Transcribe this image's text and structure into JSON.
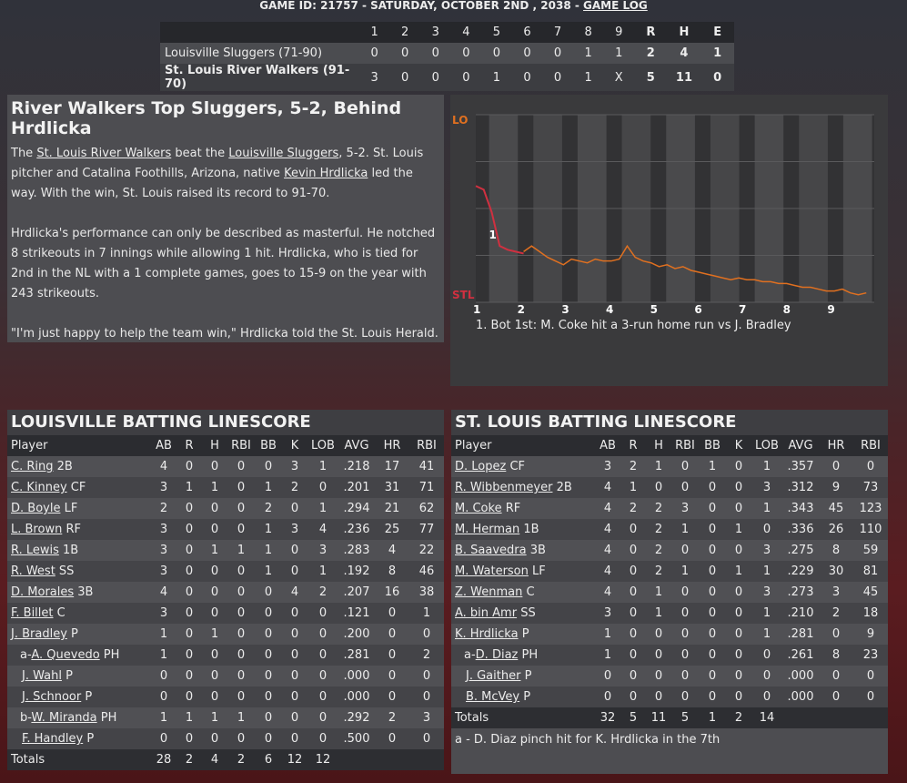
{
  "header": {
    "game_id_text": "GAME ID: 21757 - SATURDAY, OCTOBER 2ND , 2038 - ",
    "game_log_link": "GAME LOG"
  },
  "linescore": {
    "innings": [
      "1",
      "2",
      "3",
      "4",
      "5",
      "6",
      "7",
      "8",
      "9"
    ],
    "totals_headers": [
      "R",
      "H",
      "E"
    ],
    "teams": [
      {
        "name": "Louisville Sluggers (71-90)",
        "innings": [
          "0",
          "0",
          "0",
          "0",
          "0",
          "0",
          "0",
          "1",
          "1"
        ],
        "r": "2",
        "h": "4",
        "e": "1"
      },
      {
        "name": "St. Louis River Walkers (91-70)",
        "innings": [
          "3",
          "0",
          "0",
          "0",
          "1",
          "0",
          "0",
          "1",
          "X"
        ],
        "r": "5",
        "h": "11",
        "e": "0"
      }
    ]
  },
  "article": {
    "headline": "River Walkers Top Sluggers, 5-2, Behind Hrdlicka",
    "p1_a": "The ",
    "p1_link1": "St. Louis River Walkers",
    "p1_b": " beat the ",
    "p1_link2": "Louisville Sluggers",
    "p1_c": ", 5-2. St. Louis pitcher and Catalina Foothills, Arizona, native ",
    "p1_link3": "Kevin Hrdlicka",
    "p1_d": " led the way. With the win, St. Louis raised its record to 91-70.",
    "p2": "Hrdlicka's performance can only be described as masterful. He notched 8 strikeouts in 7 innings while allowing 1 hit. Hrdlicka, who is tied for 2nd in the NL with a 1 complete games, goes to 15-9 on the year with 243 strikeouts.",
    "p3": "\"I'm just happy to help the team win,\" Hrdlicka told the St. Louis Herald."
  },
  "chart_data": {
    "type": "line",
    "top_label": "LO",
    "bottom_label": "STL",
    "colors": {
      "lou": "#e07020",
      "stl": "#d03040"
    },
    "x_ticks": [
      "1",
      "2",
      "3",
      "4",
      "5",
      "6",
      "7",
      "8",
      "9"
    ],
    "ylim": [
      0,
      1
    ],
    "marker_label": "1",
    "series": [
      {
        "values": [
          0.62,
          0.6,
          0.48,
          0.3,
          0.28,
          0.27,
          0.26
        ]
      },
      {
        "values": [
          0.27,
          0.3,
          0.27,
          0.24,
          0.22,
          0.2,
          0.23,
          0.22,
          0.21,
          0.23,
          0.22,
          0.22,
          0.23,
          0.3,
          0.24,
          0.22,
          0.21,
          0.19,
          0.2,
          0.18,
          0.19,
          0.17,
          0.16,
          0.15,
          0.14,
          0.13,
          0.12,
          0.13,
          0.12,
          0.12,
          0.11,
          0.11,
          0.1,
          0.1,
          0.09,
          0.08,
          0.08,
          0.07,
          0.06,
          0.06,
          0.07,
          0.05,
          0.04,
          0.05
        ]
      }
    ],
    "caption": "1. Bot 1st: M. Coke hit a 3-run home run vs J. Bradley"
  },
  "louisville": {
    "title": "LOUISVILLE BATTING LINESCORE",
    "headers": [
      "Player",
      "AB",
      "R",
      "H",
      "RBI",
      "BB",
      "K",
      "LOB",
      "AVG",
      "HR",
      "RBI"
    ],
    "rows": [
      {
        "prefix": "",
        "name": "C. Ring",
        "pos": " 2B",
        "stats": [
          "4",
          "0",
          "0",
          "0",
          "0",
          "3",
          "1",
          ".218",
          "17",
          "41"
        ]
      },
      {
        "prefix": "",
        "name": "C. Kinney",
        "pos": " CF",
        "stats": [
          "3",
          "1",
          "1",
          "0",
          "1",
          "2",
          "0",
          ".201",
          "31",
          "71"
        ]
      },
      {
        "prefix": "",
        "name": "D. Boyle",
        "pos": " LF",
        "stats": [
          "2",
          "0",
          "0",
          "0",
          "2",
          "0",
          "1",
          ".294",
          "21",
          "62"
        ]
      },
      {
        "prefix": "",
        "name": "L. Brown",
        "pos": " RF",
        "stats": [
          "3",
          "0",
          "0",
          "0",
          "1",
          "3",
          "4",
          ".236",
          "25",
          "77"
        ]
      },
      {
        "prefix": "",
        "name": "R. Lewis",
        "pos": " 1B",
        "stats": [
          "3",
          "0",
          "1",
          "1",
          "1",
          "0",
          "3",
          ".283",
          "4",
          "22"
        ]
      },
      {
        "prefix": "",
        "name": "R. West",
        "pos": " SS",
        "stats": [
          "3",
          "0",
          "0",
          "0",
          "1",
          "0",
          "1",
          ".192",
          "8",
          "46"
        ]
      },
      {
        "prefix": "",
        "name": "D. Morales",
        "pos": " 3B",
        "stats": [
          "4",
          "0",
          "0",
          "0",
          "0",
          "4",
          "2",
          ".207",
          "16",
          "38"
        ]
      },
      {
        "prefix": "",
        "name": "F. Billet",
        "pos": " C",
        "stats": [
          "3",
          "0",
          "0",
          "0",
          "0",
          "0",
          "0",
          ".121",
          "0",
          "1"
        ]
      },
      {
        "prefix": "",
        "name": "J. Bradley",
        "pos": " P",
        "stats": [
          "1",
          "0",
          "1",
          "0",
          "0",
          "0",
          "0",
          ".200",
          "0",
          "0"
        ]
      },
      {
        "prefix": "a-",
        "name": "A. Quevedo",
        "pos": " PH",
        "stats": [
          "1",
          "0",
          "0",
          "0",
          "0",
          "0",
          "0",
          ".281",
          "0",
          "2"
        ]
      },
      {
        "prefix": "",
        "name": "J. Wahl",
        "pos": " P",
        "stats": [
          "0",
          "0",
          "0",
          "0",
          "0",
          "0",
          "0",
          ".000",
          "0",
          "0"
        ]
      },
      {
        "prefix": "",
        "name": "J. Schnoor",
        "pos": " P",
        "stats": [
          "0",
          "0",
          "0",
          "0",
          "0",
          "0",
          "0",
          ".000",
          "0",
          "0"
        ]
      },
      {
        "prefix": "b-",
        "name": "W. Miranda",
        "pos": " PH",
        "stats": [
          "1",
          "1",
          "1",
          "1",
          "0",
          "0",
          "0",
          ".292",
          "2",
          "3"
        ]
      },
      {
        "prefix": "",
        "name": "F. Handley",
        "pos": " P",
        "stats": [
          "0",
          "0",
          "0",
          "0",
          "0",
          "0",
          "0",
          ".500",
          "0",
          "0"
        ]
      }
    ],
    "totals": [
      "Totals",
      "28",
      "2",
      "4",
      "2",
      "6",
      "12",
      "12",
      "",
      "",
      ""
    ]
  },
  "stlouis": {
    "title": "ST. LOUIS BATTING LINESCORE",
    "headers": [
      "Player",
      "AB",
      "R",
      "H",
      "RBI",
      "BB",
      "K",
      "LOB",
      "AVG",
      "HR",
      "RBI"
    ],
    "rows": [
      {
        "prefix": "",
        "name": "D. Lopez",
        "pos": " CF",
        "stats": [
          "3",
          "2",
          "1",
          "0",
          "1",
          "0",
          "1",
          ".357",
          "0",
          "0"
        ]
      },
      {
        "prefix": "",
        "name": "R. Wibbenmeyer",
        "pos": " 2B",
        "stats": [
          "4",
          "1",
          "0",
          "0",
          "0",
          "0",
          "3",
          ".312",
          "9",
          "73"
        ]
      },
      {
        "prefix": "",
        "name": "M. Coke",
        "pos": " RF",
        "stats": [
          "4",
          "2",
          "2",
          "3",
          "0",
          "0",
          "1",
          ".343",
          "45",
          "123"
        ]
      },
      {
        "prefix": "",
        "name": "M. Herman",
        "pos": " 1B",
        "stats": [
          "4",
          "0",
          "2",
          "1",
          "0",
          "1",
          "0",
          ".336",
          "26",
          "110"
        ]
      },
      {
        "prefix": "",
        "name": "B. Saavedra",
        "pos": " 3B",
        "stats": [
          "4",
          "0",
          "2",
          "0",
          "0",
          "0",
          "3",
          ".275",
          "8",
          "59"
        ]
      },
      {
        "prefix": "",
        "name": "M. Waterson",
        "pos": " LF",
        "stats": [
          "4",
          "0",
          "2",
          "1",
          "0",
          "1",
          "1",
          ".229",
          "30",
          "81"
        ]
      },
      {
        "prefix": "",
        "name": "Z. Wenman",
        "pos": " C",
        "stats": [
          "4",
          "0",
          "1",
          "0",
          "0",
          "0",
          "3",
          ".273",
          "3",
          "45"
        ]
      },
      {
        "prefix": "",
        "name": "A. bin Amr",
        "pos": " SS",
        "stats": [
          "3",
          "0",
          "1",
          "0",
          "0",
          "0",
          "1",
          ".210",
          "2",
          "18"
        ]
      },
      {
        "prefix": "",
        "name": "K. Hrdlicka",
        "pos": " P",
        "stats": [
          "1",
          "0",
          "0",
          "0",
          "0",
          "0",
          "1",
          ".281",
          "0",
          "9"
        ]
      },
      {
        "prefix": "a-",
        "name": "D. Diaz",
        "pos": " PH",
        "stats": [
          "1",
          "0",
          "0",
          "0",
          "0",
          "0",
          "0",
          ".261",
          "8",
          "23"
        ]
      },
      {
        "prefix": "",
        "name": "J. Gaither",
        "pos": " P",
        "stats": [
          "0",
          "0",
          "0",
          "0",
          "0",
          "0",
          "0",
          ".000",
          "0",
          "0"
        ]
      },
      {
        "prefix": "",
        "name": "B. McVey",
        "pos": " P",
        "stats": [
          "0",
          "0",
          "0",
          "0",
          "0",
          "0",
          "0",
          ".000",
          "0",
          "0"
        ]
      }
    ],
    "totals": [
      "Totals",
      "32",
      "5",
      "11",
      "5",
      "1",
      "2",
      "14",
      "",
      "",
      ""
    ],
    "note": "a - D. Diaz pinch hit for K. Hrdlicka in the 7th"
  }
}
